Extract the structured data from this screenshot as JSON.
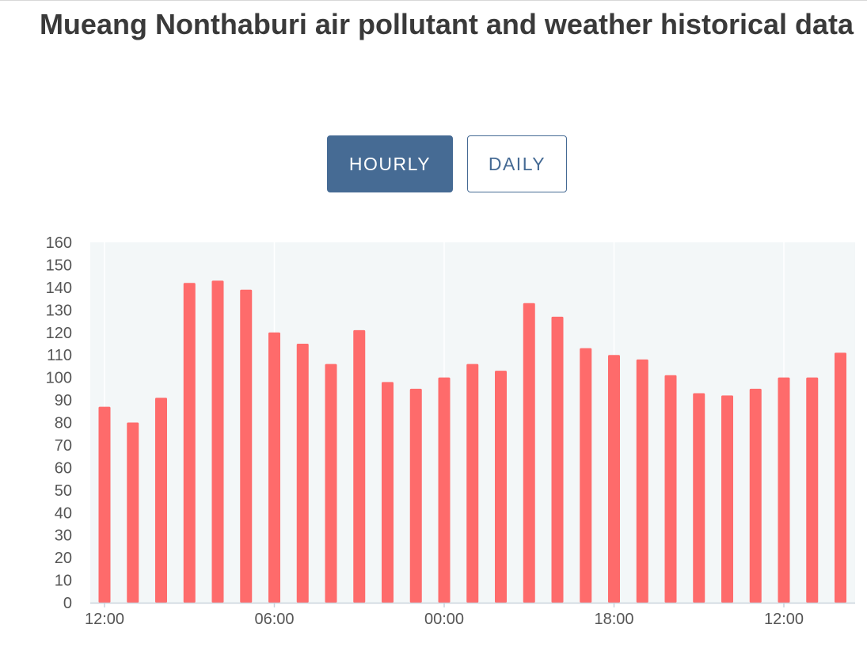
{
  "page": {
    "title": "Mueang Nonthaburi air pollutant and weather historical data"
  },
  "tabs": [
    {
      "label": "HOURLY",
      "active": true
    },
    {
      "label": "DAILY",
      "active": false
    }
  ],
  "colors": {
    "bar": "#fe6b6b",
    "plot_background": "#f3f7f8",
    "tab_active": "#466b94",
    "tab_border": "#456a94"
  },
  "chart_data": {
    "type": "bar",
    "title": "",
    "xlabel": "",
    "ylabel": "",
    "ylim": [
      0,
      160
    ],
    "y_ticks": [
      0,
      10,
      20,
      30,
      40,
      50,
      60,
      70,
      80,
      90,
      100,
      110,
      120,
      130,
      140,
      150,
      160
    ],
    "x_tick_labels": [
      {
        "label": "12:00",
        "index": 0
      },
      {
        "label": "06:00",
        "index": 6
      },
      {
        "label": "00:00",
        "index": 12
      },
      {
        "label": "18:00",
        "index": 18
      },
      {
        "label": "12:00",
        "index": 24
      }
    ],
    "grid": true,
    "values": [
      87,
      80,
      91,
      142,
      143,
      139,
      120,
      115,
      106,
      121,
      98,
      95,
      100,
      106,
      103,
      133,
      127,
      113,
      110,
      108,
      101,
      93,
      92,
      95,
      100,
      100,
      111
    ]
  }
}
